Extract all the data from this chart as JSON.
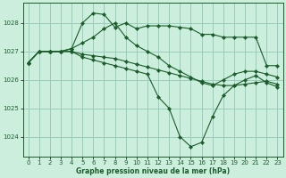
{
  "background_color": "#cceedd",
  "grid_color": "#99ccbb",
  "line_color": "#1a5c2a",
  "marker_color": "#1a5c2a",
  "xlabel": "Graphe pression niveau de la mer (hPa)",
  "xlim": [
    -0.5,
    23.5
  ],
  "ylim": [
    1023.3,
    1028.7
  ],
  "yticks": [
    1024,
    1025,
    1026,
    1027,
    1028
  ],
  "xticks": [
    0,
    1,
    2,
    3,
    4,
    5,
    6,
    7,
    8,
    9,
    10,
    11,
    12,
    13,
    14,
    15,
    16,
    17,
    18,
    19,
    20,
    21,
    22,
    23
  ],
  "series": [
    [
      1026.6,
      1027.0,
      1027.0,
      1027.0,
      1027.1,
      1028.0,
      1028.35,
      1028.3,
      1027.85,
      1028.0,
      1027.8,
      1027.9,
      1027.9,
      1027.9,
      1027.85,
      1027.8,
      1027.6,
      1027.6,
      1027.5,
      1027.5,
      1027.5,
      1027.5,
      1026.5,
      1026.5
    ],
    [
      1026.6,
      1027.0,
      1027.0,
      1027.0,
      1027.1,
      1027.3,
      1027.5,
      1027.8,
      1028.0,
      1027.5,
      1027.2,
      1027.0,
      1026.8,
      1026.5,
      1026.3,
      1026.1,
      1025.9,
      1025.8,
      1026.0,
      1026.2,
      1026.3,
      1026.3,
      1026.2,
      1026.1
    ],
    [
      1026.6,
      1027.0,
      1027.0,
      1027.0,
      1027.0,
      1026.9,
      1026.85,
      1026.8,
      1026.75,
      1026.65,
      1026.55,
      1026.45,
      1026.35,
      1026.25,
      1026.15,
      1026.05,
      1025.95,
      1025.85,
      1025.8,
      1025.8,
      1025.85,
      1025.9,
      1025.95,
      1025.85
    ],
    [
      1026.6,
      1027.0,
      1027.0,
      1027.0,
      1027.0,
      1026.8,
      1026.7,
      1026.6,
      1026.5,
      1026.4,
      1026.3,
      1026.2,
      1025.4,
      1025.0,
      1024.0,
      1023.65,
      1023.8,
      1024.7,
      1025.45,
      1025.8,
      1026.0,
      1026.15,
      1025.9,
      1025.75
    ]
  ]
}
